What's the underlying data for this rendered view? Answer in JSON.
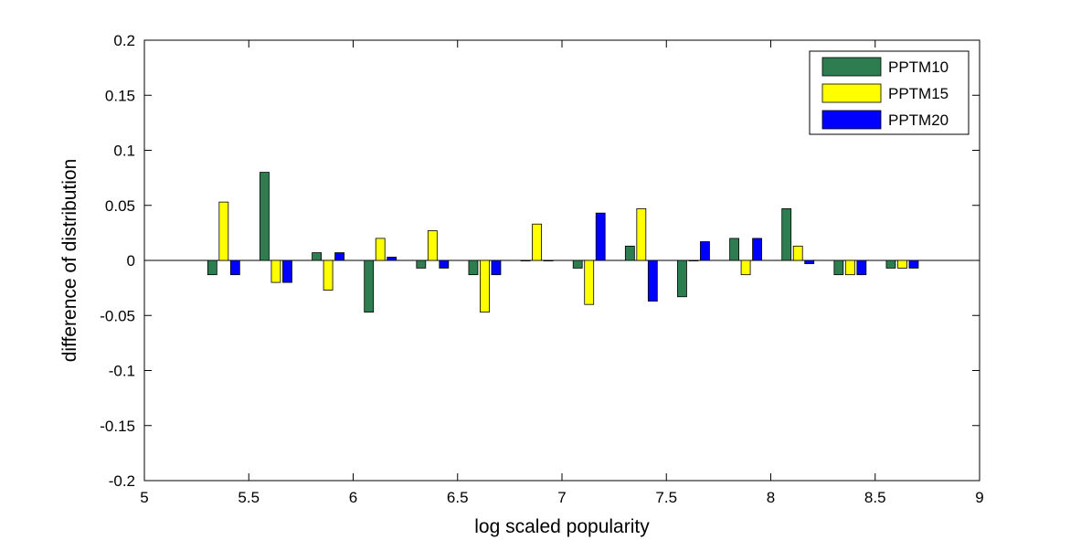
{
  "chart_data": {
    "type": "bar",
    "title": "",
    "xlabel": "log scaled popularity",
    "ylabel": "difference of distribution",
    "xlim": [
      5,
      9
    ],
    "ylim": [
      -0.2,
      0.2
    ],
    "xticks": [
      5,
      5.5,
      6,
      6.5,
      7,
      7.5,
      8,
      8.5,
      9
    ],
    "xtick_labels": [
      "5",
      "5.5",
      "6",
      "6.5",
      "7",
      "7.5",
      "8",
      "8.5",
      "9"
    ],
    "yticks": [
      -0.2,
      -0.15,
      -0.1,
      -0.05,
      0,
      0.05,
      0.1,
      0.15,
      0.2
    ],
    "ytick_labels": [
      "-0.2",
      "-0.15",
      "-0.1",
      "-0.05",
      "0",
      "0.05",
      "0.1",
      "0.15",
      "0.2"
    ],
    "grid": false,
    "legend_position": "top-right",
    "group_centers": [
      5.38,
      5.63,
      5.88,
      6.13,
      6.38,
      6.63,
      6.88,
      7.13,
      7.38,
      7.63,
      7.88,
      8.13,
      8.38,
      8.63
    ],
    "series": [
      {
        "name": "PPTM10",
        "color": "#2e7d50",
        "values": [
          -0.013,
          0.08,
          0.007,
          -0.047,
          -0.007,
          -0.013,
          0.0,
          -0.007,
          0.013,
          -0.033,
          0.02,
          0.047,
          -0.013,
          -0.007
        ]
      },
      {
        "name": "PPTM15",
        "color": "#ffff00",
        "values": [
          0.053,
          -0.02,
          -0.027,
          0.02,
          0.027,
          -0.047,
          0.033,
          -0.04,
          0.047,
          0.0,
          -0.013,
          0.013,
          -0.013,
          -0.007
        ]
      },
      {
        "name": "PPTM20",
        "color": "#0000ff",
        "values": [
          -0.013,
          -0.02,
          0.007,
          0.003,
          -0.007,
          -0.013,
          0.0,
          0.043,
          -0.037,
          0.017,
          0.02,
          -0.003,
          -0.013,
          -0.007
        ]
      }
    ]
  }
}
